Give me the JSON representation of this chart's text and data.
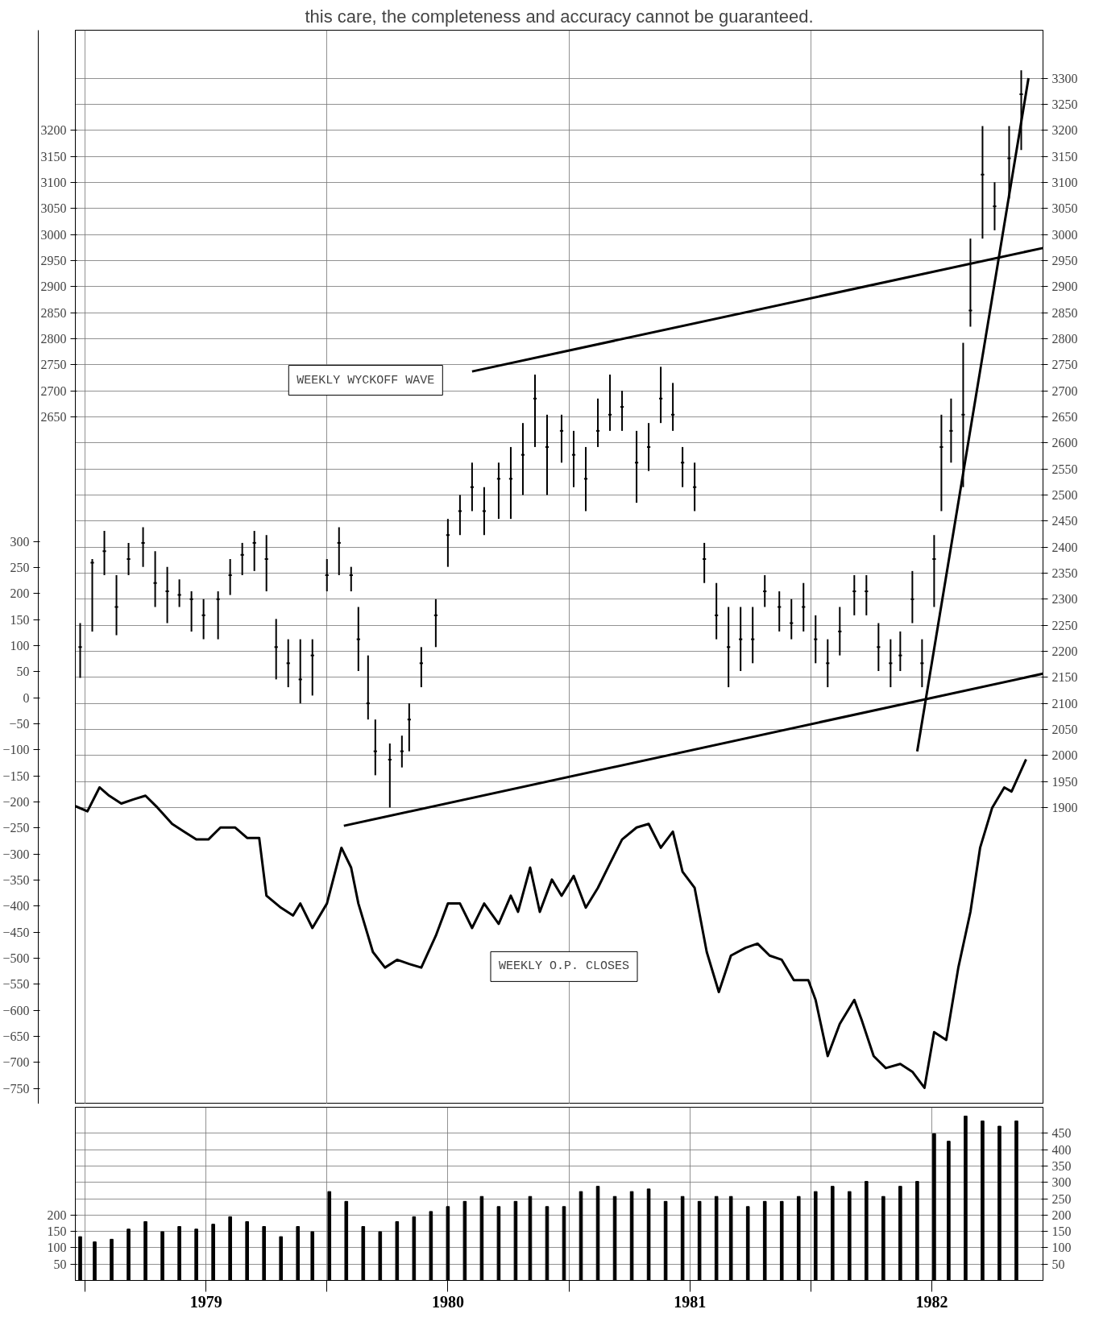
{
  "chart_data": [
    {
      "type": "candlestick",
      "annotations": [
        "this care, the completeness and accuracy cannot be guaranteed."
      ],
      "tick_labels": "y",
      "xlim": [
        1978.96,
        1982.96
      ],
      "xticks": [
        {
          "value": 1979.0,
          "label": null
        },
        {
          "value": 1980.0,
          "label": null
        },
        {
          "value": 1981.0,
          "label": null
        },
        {
          "value": 1982.0,
          "label": null
        }
      ],
      "ylim": [
        1331,
        3392
      ],
      "yticks": [
        1900,
        1950,
        2000,
        2050,
        2100,
        2150,
        2200,
        2250,
        2300,
        2350,
        2400,
        2450,
        2500,
        2550,
        2600,
        2650,
        2700,
        2750,
        2800,
        2850,
        2900,
        2950,
        3000,
        3050,
        3100,
        3150,
        3200,
        3250,
        3300
      ],
      "y2lim": [
        1331,
        3392
      ],
      "y2ticks": [
        2650,
        2700,
        2750,
        2800,
        2850,
        2900,
        2950,
        3000,
        3050,
        3100,
        3150,
        3200
      ],
      "y3lim": [
        -780,
        1282
      ],
      "y3ticks": [
        -750,
        -700,
        -650,
        -600,
        -550,
        -500,
        -450,
        -400,
        -350,
        -300,
        -250,
        -200,
        -150,
        -100,
        -50,
        0,
        50,
        100,
        150,
        200,
        250,
        300
      ],
      "grid": true,
      "series": [
        {
          "name": "WEEKLY WYCKOFF WAVE",
          "color": "#000000",
          "x": [
            1978.98,
            1979.03,
            1979.08,
            1979.13,
            1979.18,
            1979.24,
            1979.29,
            1979.34,
            1979.39,
            1979.44,
            1979.49,
            1979.55,
            1979.6,
            1979.65,
            1979.7,
            1979.75,
            1979.79,
            1979.84,
            1979.89,
            1979.94,
            1980.0,
            1980.05,
            1980.1,
            1980.13,
            1980.17,
            1980.2,
            1980.26,
            1980.31,
            1980.34,
            1980.39,
            1980.45,
            1980.5,
            1980.55,
            1980.6,
            1980.65,
            1980.71,
            1980.76,
            1980.81,
            1980.86,
            1980.91,
            1980.97,
            1981.02,
            1981.07,
            1981.12,
            1981.17,
            1981.22,
            1981.28,
            1981.33,
            1981.38,
            1981.43,
            1981.47,
            1981.52,
            1981.56,
            1981.61,
            1981.66,
            1981.71,
            1981.76,
            1981.81,
            1981.87,
            1981.92,
            1981.97,
            1982.02,
            1982.07,
            1982.12,
            1982.18,
            1982.23,
            1982.28,
            1982.33,
            1982.37,
            1982.42,
            1982.46,
            1982.51,
            1982.54,
            1982.58,
            1982.63,
            1982.66,
            1982.71,
            1982.76,
            1982.82,
            1982.87
          ],
          "ohlc": [
            [
              2208,
              2254,
              2149,
              2208
            ],
            [
              2370,
              2377,
              2238,
              2370
            ],
            [
              2392,
              2431,
              2346,
              2392
            ],
            [
              2285,
              2346,
              2231,
              2285
            ],
            [
              2377,
              2408,
              2346,
              2377
            ],
            [
              2408,
              2438,
              2362,
              2408
            ],
            [
              2331,
              2392,
              2285,
              2331
            ],
            [
              2315,
              2362,
              2254,
              2315
            ],
            [
              2308,
              2338,
              2285,
              2308
            ],
            [
              2300,
              2315,
              2238,
              2300
            ],
            [
              2269,
              2300,
              2223,
              2269
            ],
            [
              2300,
              2315,
              2223,
              2300
            ],
            [
              2346,
              2377,
              2308,
              2346
            ],
            [
              2385,
              2408,
              2346,
              2385
            ],
            [
              2408,
              2431,
              2354,
              2408
            ],
            [
              2377,
              2423,
              2315,
              2377
            ],
            [
              2208,
              2262,
              2146,
              2208
            ],
            [
              2177,
              2223,
              2131,
              2177
            ],
            [
              2146,
              2223,
              2100,
              2146
            ],
            [
              2192,
              2223,
              2115,
              2192
            ],
            [
              2346,
              2377,
              2315,
              2346
            ],
            [
              2408,
              2438,
              2346,
              2408
            ],
            [
              2346,
              2362,
              2315,
              2346
            ],
            [
              2223,
              2285,
              2162,
              2223
            ],
            [
              2100,
              2192,
              2069,
              2100
            ],
            [
              2008,
              2069,
              1962,
              2008
            ],
            [
              1992,
              2023,
              1900,
              1992
            ],
            [
              2008,
              2038,
              1977,
              2008
            ],
            [
              2069,
              2100,
              2008,
              2069
            ],
            [
              2177,
              2208,
              2131,
              2177
            ],
            [
              2269,
              2300,
              2208,
              2269
            ],
            [
              2423,
              2454,
              2362,
              2423
            ],
            [
              2469,
              2500,
              2423,
              2469
            ],
            [
              2515,
              2562,
              2469,
              2515
            ],
            [
              2469,
              2515,
              2423,
              2469
            ],
            [
              2531,
              2562,
              2454,
              2531
            ],
            [
              2531,
              2592,
              2454,
              2531
            ],
            [
              2577,
              2638,
              2500,
              2577
            ],
            [
              2685,
              2731,
              2592,
              2685
            ],
            [
              2592,
              2654,
              2500,
              2592
            ],
            [
              2623,
              2654,
              2562,
              2623
            ],
            [
              2577,
              2623,
              2515,
              2577
            ],
            [
              2531,
              2592,
              2469,
              2531
            ],
            [
              2623,
              2685,
              2592,
              2623
            ],
            [
              2654,
              2731,
              2623,
              2654
            ],
            [
              2669,
              2700,
              2623,
              2669
            ],
            [
              2562,
              2623,
              2485,
              2562
            ],
            [
              2592,
              2638,
              2546,
              2592
            ],
            [
              2685,
              2746,
              2638,
              2685
            ],
            [
              2654,
              2715,
              2623,
              2654
            ],
            [
              2562,
              2592,
              2515,
              2562
            ],
            [
              2515,
              2562,
              2469,
              2515
            ],
            [
              2377,
              2408,
              2331,
              2377
            ],
            [
              2269,
              2331,
              2223,
              2269
            ],
            [
              2208,
              2285,
              2131,
              2208
            ],
            [
              2223,
              2285,
              2162,
              2223
            ],
            [
              2223,
              2285,
              2177,
              2223
            ],
            [
              2315,
              2346,
              2285,
              2315
            ],
            [
              2285,
              2315,
              2238,
              2285
            ],
            [
              2254,
              2300,
              2223,
              2254
            ],
            [
              2285,
              2331,
              2238,
              2285
            ],
            [
              2223,
              2269,
              2177,
              2223
            ],
            [
              2177,
              2223,
              2131,
              2177
            ],
            [
              2238,
              2285,
              2192,
              2238
            ],
            [
              2315,
              2346,
              2269,
              2315
            ],
            [
              2315,
              2346,
              2269,
              2315
            ],
            [
              2208,
              2254,
              2162,
              2208
            ],
            [
              2177,
              2223,
              2131,
              2177
            ],
            [
              2192,
              2238,
              2162,
              2192
            ],
            [
              2300,
              2354,
              2254,
              2300
            ],
            [
              2177,
              2223,
              2131,
              2177
            ],
            [
              2377,
              2423,
              2285,
              2377
            ],
            [
              2592,
              2654,
              2469,
              2592
            ],
            [
              2623,
              2685,
              2562,
              2623
            ],
            [
              2654,
              2792,
              2515,
              2654
            ],
            [
              2854,
              2992,
              2823,
              2854
            ],
            [
              3115,
              3208,
              2992,
              3115
            ],
            [
              3054,
              3100,
              3008,
              3054
            ],
            [
              3146,
              3208,
              3069,
              3146
            ],
            [
              3269,
              3315,
              3162,
              3269
            ]
          ]
        },
        {
          "name": "WEEKLY O.P. CLOSES",
          "type": "line",
          "axis": "y3",
          "color": "#000000",
          "x": [
            1978.96,
            1979.01,
            1979.06,
            1979.1,
            1979.15,
            1979.2,
            1979.25,
            1979.3,
            1979.36,
            1979.41,
            1979.46,
            1979.51,
            1979.56,
            1979.62,
            1979.67,
            1979.72,
            1979.75,
            1979.81,
            1979.86,
            1979.89,
            1979.94,
            1980.0,
            1980.06,
            1980.1,
            1980.13,
            1980.19,
            1980.24,
            1980.29,
            1980.34,
            1980.39,
            1980.45,
            1980.5,
            1980.55,
            1980.6,
            1980.65,
            1980.71,
            1980.76,
            1980.79,
            1980.84,
            1980.88,
            1980.93,
            1980.97,
            1981.02,
            1981.07,
            1981.12,
            1981.17,
            1981.22,
            1981.28,
            1981.33,
            1981.38,
            1981.43,
            1981.47,
            1981.52,
            1981.57,
            1981.62,
            1981.67,
            1981.73,
            1981.78,
            1981.83,
            1981.88,
            1981.93,
            1981.99,
            1982.02,
            1982.07,
            1982.12,
            1982.18,
            1982.21,
            1982.26,
            1982.31,
            1982.37,
            1982.42,
            1982.47,
            1982.51,
            1982.56,
            1982.61,
            1982.66,
            1982.7,
            1982.75,
            1982.8,
            1982.83,
            1982.89
          ],
          "values": [
            -208,
            -218,
            -172,
            -188,
            -203,
            -195,
            -188,
            -211,
            -242,
            -257,
            -272,
            -272,
            -249,
            -249,
            -269,
            -269,
            -380,
            -403,
            -418,
            -395,
            -442,
            -395,
            -288,
            -326,
            -395,
            -488,
            -518,
            -503,
            -511,
            -518,
            -457,
            -395,
            -395,
            -442,
            -395,
            -434,
            -380,
            -411,
            -326,
            -411,
            -349,
            -380,
            -342,
            -403,
            -365,
            -318,
            -272,
            -249,
            -242,
            -288,
            -257,
            -334,
            -365,
            -488,
            -565,
            -495,
            -480,
            -472,
            -495,
            -503,
            -542,
            -542,
            -580,
            -688,
            -626,
            -580,
            -618,
            -688,
            -711,
            -703,
            -718,
            -749,
            -642,
            -657,
            -518,
            -411,
            -288,
            -211,
            -172,
            -180,
            -118
          ]
        },
        {
          "type": "line",
          "axis": "y",
          "color": "#000000",
          "x": [
            1980.6,
            1982.96
          ],
          "values": [
            2737,
            2974
          ]
        },
        {
          "type": "line",
          "axis": "y",
          "color": "#000000",
          "x": [
            1980.07,
            1982.96
          ],
          "values": [
            1865,
            2157
          ]
        },
        {
          "type": "line",
          "axis": "y",
          "color": "#000000",
          "x": [
            1982.44,
            1982.9
          ],
          "values": [
            2008,
            3300
          ]
        }
      ]
    },
    {
      "type": "bar",
      "color": "#000000",
      "xlim": [
        1978.96,
        1982.96
      ],
      "xticks": [
        {
          "value": 1979.0,
          "label": null
        },
        {
          "value": 1979.5,
          "label": "1979"
        },
        {
          "value": 1980.0,
          "label": null
        },
        {
          "value": 1980.5,
          "label": "1980"
        },
        {
          "value": 1981.0,
          "label": null
        },
        {
          "value": 1981.5,
          "label": "1981"
        },
        {
          "value": 1982.0,
          "label": null
        },
        {
          "value": 1982.5,
          "label": "1982"
        }
      ],
      "ylim": [
        0,
        530
      ],
      "yticks": [
        50,
        100,
        150,
        200,
        250,
        300,
        350,
        400,
        450
      ],
      "y2lim": [
        0,
        530
      ],
      "y2ticks": [
        50,
        100,
        150,
        200
      ],
      "grid": true,
      "x": [
        1978.98,
        1979.04,
        1979.11,
        1979.18,
        1979.25,
        1979.32,
        1979.39,
        1979.46,
        1979.53,
        1979.6,
        1979.67,
        1979.74,
        1979.81,
        1979.88,
        1979.94,
        1980.01,
        1980.08,
        1980.15,
        1980.22,
        1980.29,
        1980.36,
        1980.43,
        1980.5,
        1980.57,
        1980.64,
        1980.71,
        1980.78,
        1980.84,
        1980.91,
        1980.98,
        1981.05,
        1981.12,
        1981.19,
        1981.26,
        1981.33,
        1981.4,
        1981.47,
        1981.54,
        1981.61,
        1981.67,
        1981.74,
        1981.81,
        1981.88,
        1981.95,
        1982.02,
        1982.09,
        1982.16,
        1982.23,
        1982.3,
        1982.37,
        1982.44,
        1982.51,
        1982.57,
        1982.64,
        1982.71,
        1982.78,
        1982.85
      ],
      "values": [
        134,
        118,
        126,
        157,
        180,
        149,
        165,
        157,
        172,
        195,
        180,
        165,
        134,
        165,
        149,
        272,
        242,
        165,
        149,
        180,
        195,
        211,
        226,
        242,
        257,
        226,
        242,
        257,
        226,
        226,
        272,
        288,
        257,
        272,
        280,
        242,
        257,
        242,
        257,
        257,
        226,
        242,
        242,
        257,
        272,
        288,
        272,
        303,
        257,
        288,
        303,
        449,
        426,
        503,
        488,
        472,
        488
      ]
    }
  ]
}
